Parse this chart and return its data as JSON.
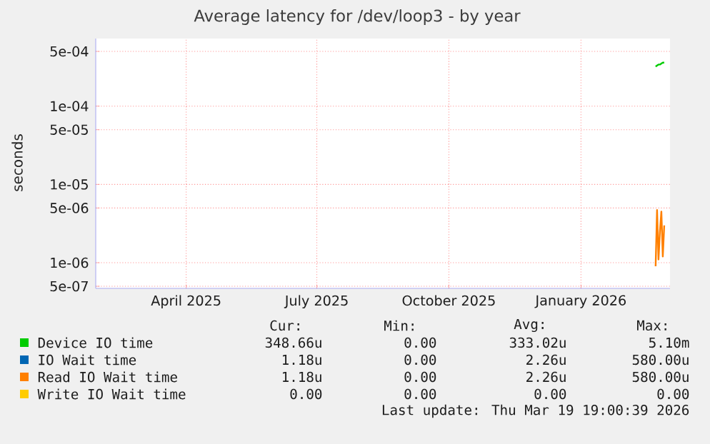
{
  "chart_data": {
    "type": "line",
    "title": "Average latency for /dev/loop3 - by year",
    "ylabel": "seconds",
    "log": "y",
    "grid": true,
    "legend": "bottom",
    "xlim": [
      "2025-02-12",
      "2026-03-19"
    ],
    "xticks": [
      {
        "value": "2025-04-16",
        "label": "April 2025"
      },
      {
        "value": "2025-07-16",
        "label": "July 2025"
      },
      {
        "value": "2025-10-16",
        "label": "October 2025"
      },
      {
        "value": "2026-01-16",
        "label": "January 2026"
      }
    ],
    "ylim": [
      4.7e-07,
      0.00073
    ],
    "yticks": [
      {
        "value": 0.0005,
        "label": "5e-04"
      },
      {
        "value": 0.0001,
        "label": "1e-04"
      },
      {
        "value": 5e-05,
        "label": "5e-05"
      },
      {
        "value": 1e-05,
        "label": "1e-05"
      },
      {
        "value": 5e-06,
        "label": "5e-06"
      },
      {
        "value": 1e-06,
        "label": "1e-06"
      },
      {
        "value": 5e-07,
        "label": "5e-07"
      }
    ],
    "series": [
      {
        "name": "Device IO time",
        "color": "#00cc00",
        "x": [
          "2026-03-09",
          "2026-03-10",
          "2026-03-11",
          "2026-03-12",
          "2026-03-13",
          "2026-03-14",
          "2026-03-15"
        ],
        "values": [
          0.00032,
          0.00033,
          0.00034,
          0.00034,
          0.00035,
          0.00036,
          0.00036
        ]
      },
      {
        "name": "IO Wait time",
        "color": "#0066b3"
      },
      {
        "name": "Read IO Wait time",
        "color": "#ff8000",
        "x": [
          "2026-03-09",
          "2026-03-10",
          "2026-03-11",
          "2026-03-12",
          "2026-03-13",
          "2026-03-14",
          "2026-03-15"
        ],
        "values": [
          9e-07,
          4.7e-06,
          1.1e-06,
          2.5e-06,
          4.5e-06,
          1.2e-06,
          3e-06
        ]
      },
      {
        "name": "Write IO Wait time",
        "color": "#ffcc00"
      }
    ],
    "annotations": [
      "Cur:",
      "Min:",
      "Avg:",
      "Max:",
      "348.66u",
      "0.00",
      "333.02u",
      "5.10m",
      "1.18u",
      "0.00",
      "2.26u",
      "580.00u",
      "1.18u",
      "0.00",
      "2.26u",
      "580.00u",
      "0.00",
      "0.00",
      "0.00",
      "0.00",
      "Last update: Thu Mar 19 19:00:39 2026"
    ]
  }
}
